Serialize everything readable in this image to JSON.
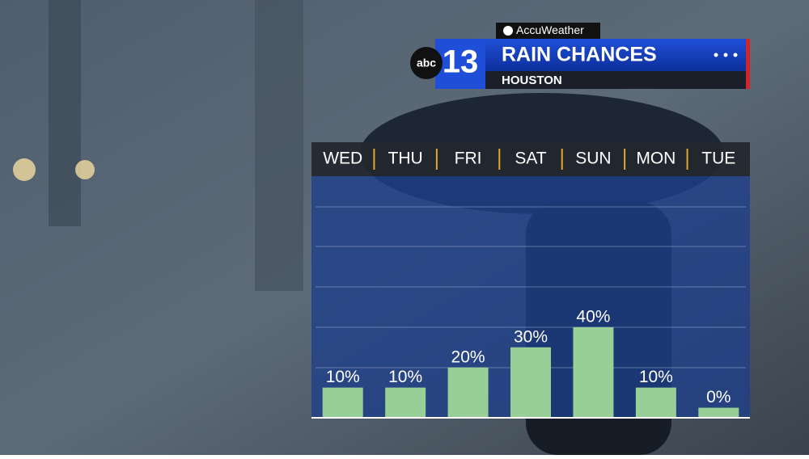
{
  "brand": "AccuWeather",
  "logo": {
    "network": "abc",
    "channel": "13"
  },
  "chart_data": {
    "type": "bar",
    "title": "RAIN CHANCES",
    "subtitle": "HOUSTON",
    "categories": [
      "WED",
      "THU",
      "FRI",
      "SAT",
      "SUN",
      "MON",
      "TUE"
    ],
    "values": [
      10,
      10,
      20,
      30,
      40,
      10,
      0
    ],
    "value_labels": [
      "10%",
      "10%",
      "20%",
      "30%",
      "40%",
      "10%",
      "0%"
    ],
    "color": "#97cf97",
    "ylim": [
      -5,
      115
    ]
  }
}
